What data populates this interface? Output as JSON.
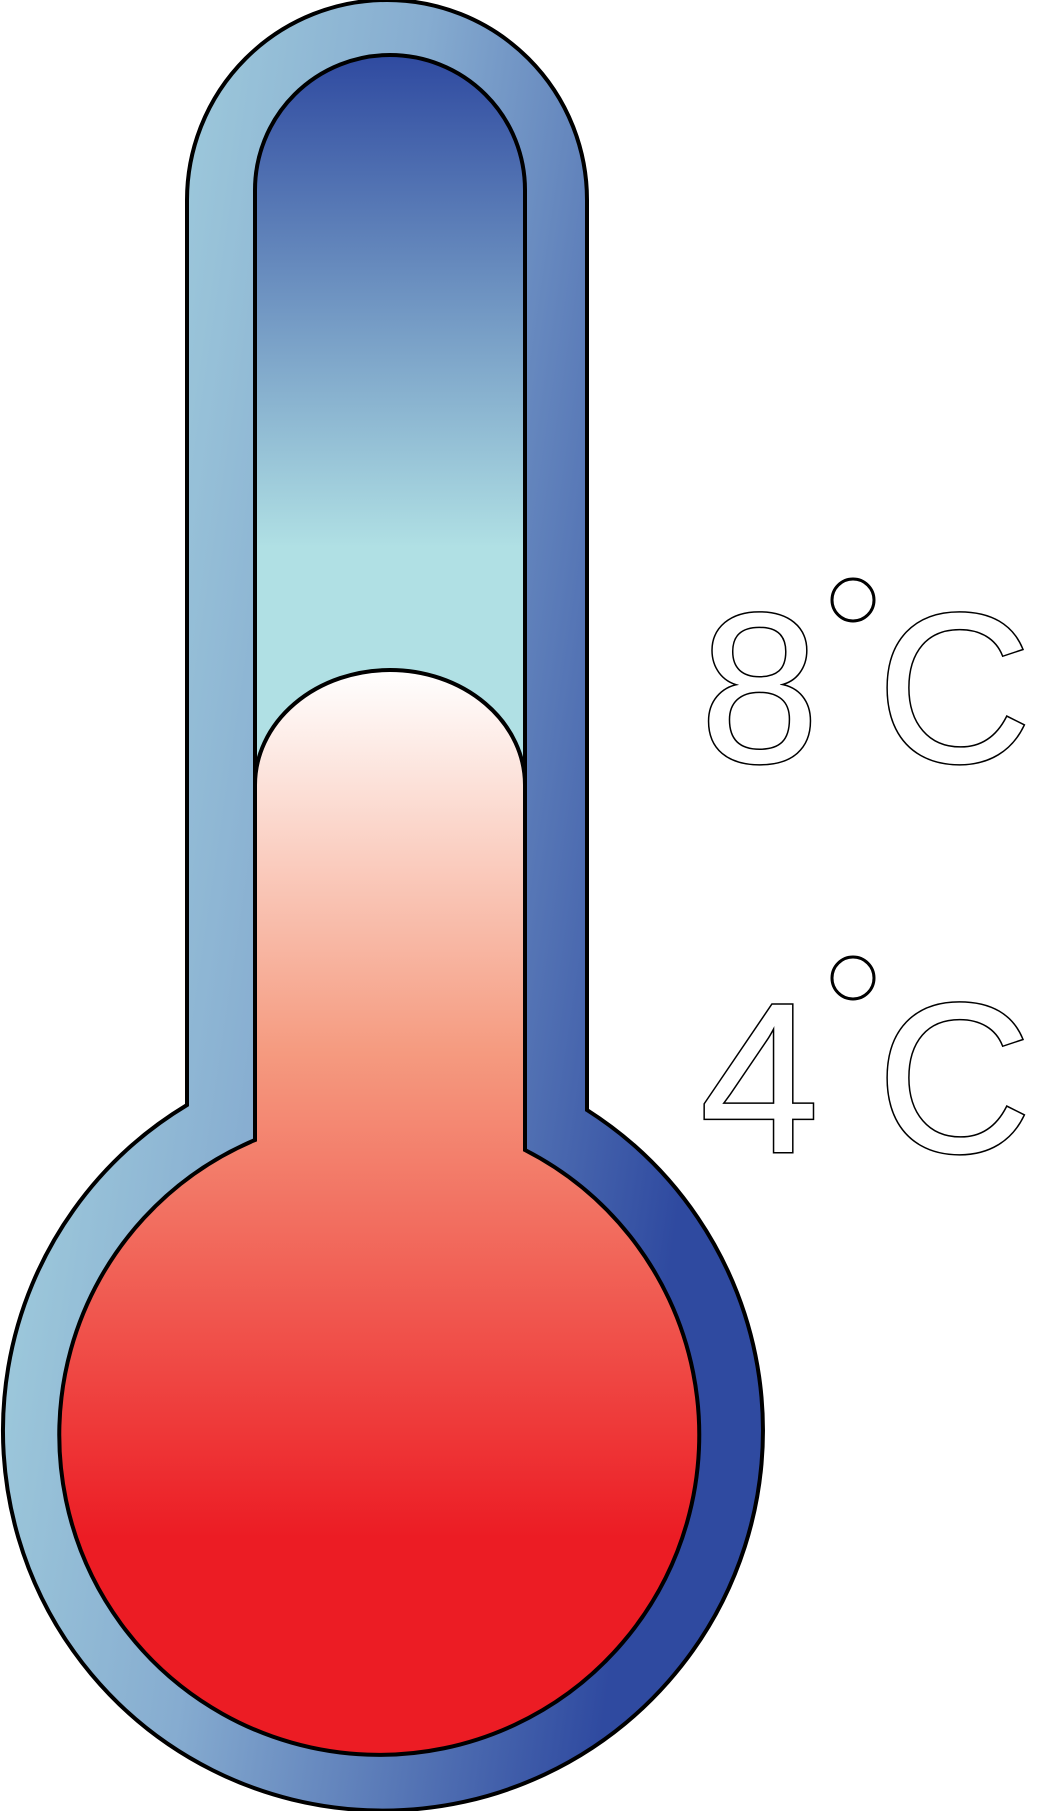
{
  "thermometer": {
    "labels": [
      {
        "id": "upper",
        "value": "8",
        "unit": "C"
      },
      {
        "id": "lower",
        "value": "4",
        "unit": "C"
      }
    ],
    "colors": {
      "outline": "#000000",
      "glass_light": "#b0e0e4",
      "glass_dark": "#2f4aa0",
      "tube_top": "#2f4aa0",
      "tube_mid": "#b0e0e4",
      "liquid_top": "#ffffff",
      "liquid_mid": "#f59b80",
      "liquid_bottom": "#ec1c24",
      "label_fill": "#ffffff"
    }
  }
}
